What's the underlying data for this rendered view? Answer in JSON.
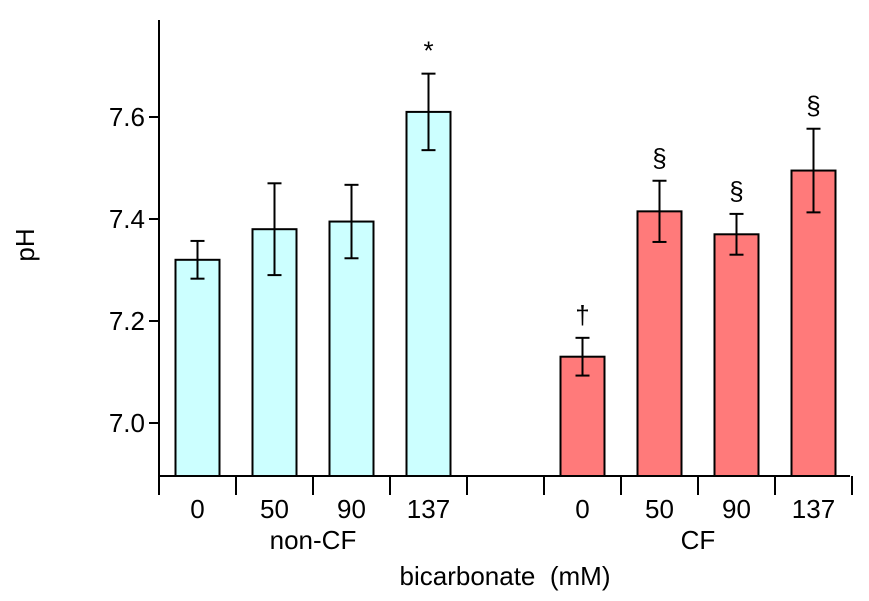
{
  "chart_data": {
    "type": "bar",
    "ylabel": "pH",
    "xlabel": "bicarbonate  (mM)",
    "ylim": [
      6.9,
      7.8
    ],
    "yticks": [
      "7.0",
      "7.2",
      "7.4",
      "7.6"
    ],
    "ytick_values": [
      7.0,
      7.2,
      7.4,
      7.6
    ],
    "groups": [
      {
        "name": "non-CF",
        "color": "#CCFFFF",
        "categories": [
          "0",
          "50",
          "90",
          "137"
        ],
        "values": [
          7.32,
          7.38,
          7.395,
          7.61
        ],
        "errors": [
          0.037,
          0.09,
          0.072,
          0.075
        ],
        "annotations": [
          "",
          "",
          "",
          "*"
        ]
      },
      {
        "name": "CF",
        "color": "#FF7A7A",
        "categories": [
          "0",
          "50",
          "90",
          "137"
        ],
        "values": [
          7.13,
          7.415,
          7.37,
          7.495
        ],
        "errors": [
          0.037,
          0.06,
          0.04,
          0.082
        ],
        "annotations": [
          "†",
          "§",
          "§",
          "§"
        ]
      }
    ]
  }
}
